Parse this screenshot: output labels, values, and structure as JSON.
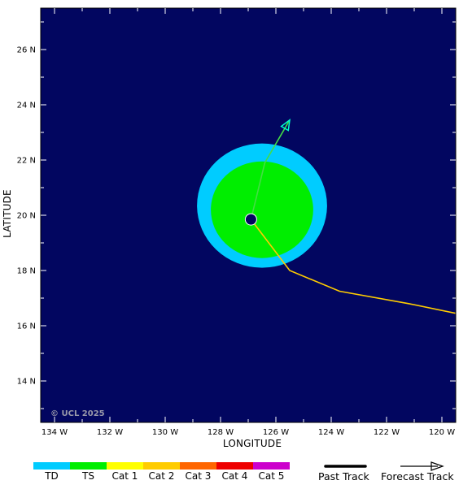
{
  "map": {
    "lon_range": [
      -134.5,
      -119.5
    ],
    "lat_range": [
      12.5,
      27.5
    ],
    "x_ticks": [
      {
        "lon": -134,
        "label": "134 W"
      },
      {
        "lon": -132,
        "label": "132 W"
      },
      {
        "lon": -130,
        "label": "130 W"
      },
      {
        "lon": -128,
        "label": "128 W"
      },
      {
        "lon": -126,
        "label": "126 W"
      },
      {
        "lon": -124,
        "label": "124 W"
      },
      {
        "lon": -122,
        "label": "122 W"
      },
      {
        "lon": -120,
        "label": "120 W"
      }
    ],
    "y_ticks": [
      {
        "lat": 14,
        "label": "14 N"
      },
      {
        "lat": 16,
        "label": "16 N"
      },
      {
        "lat": 18,
        "label": "18 N"
      },
      {
        "lat": 20,
        "label": "20 N"
      },
      {
        "lat": 22,
        "label": "22 N"
      },
      {
        "lat": 24,
        "label": "24 N"
      },
      {
        "lat": 26,
        "label": "26 N"
      }
    ],
    "xlabel": "LONGITUDE",
    "ylabel": "LATITUDE",
    "copyright": "© UCL 2025",
    "colors": {
      "ocean": "#020660",
      "td": "#00ccff",
      "ts": "#00ee00",
      "past_track": "#ffcc00",
      "forecast_track": "#44dd44",
      "forecast_arrow": "#00ffcc",
      "storm_marker": "#020660"
    },
    "storm_center": {
      "lon": -126.9,
      "lat": 19.85
    },
    "wind_fields": [
      {
        "category": "TD",
        "center_lon": -126.5,
        "center_lat": 20.35,
        "radius_lon": 2.35,
        "radius_lat": 2.25
      },
      {
        "category": "TS",
        "center_lon": -126.5,
        "center_lat": 20.2,
        "radius_lon": 1.85,
        "radius_lat": 1.75
      }
    ],
    "past_track": [
      {
        "lon": -119.5,
        "lat": 16.45
      },
      {
        "lon": -121.2,
        "lat": 16.8
      },
      {
        "lon": -123.7,
        "lat": 17.25
      },
      {
        "lon": -125.5,
        "lat": 18.0
      },
      {
        "lon": -126.9,
        "lat": 19.85
      }
    ],
    "forecast_track": [
      {
        "lon": -126.9,
        "lat": 19.85
      },
      {
        "lon": -126.4,
        "lat": 21.9
      },
      {
        "lon": -125.5,
        "lat": 23.45
      }
    ]
  },
  "legend": {
    "categories": [
      {
        "label": "TD",
        "color": "#00ccff"
      },
      {
        "label": "TS",
        "color": "#00ee00"
      },
      {
        "label": "Cat 1",
        "color": "#ffff00"
      },
      {
        "label": "Cat 2",
        "color": "#ffcc00"
      },
      {
        "label": "Cat 3",
        "color": "#ff6600"
      },
      {
        "label": "Cat 4",
        "color": "#ee0000"
      },
      {
        "label": "Cat 5",
        "color": "#cc00cc"
      }
    ],
    "past_track_label": "Past Track",
    "forecast_track_label": "Forecast Track"
  }
}
